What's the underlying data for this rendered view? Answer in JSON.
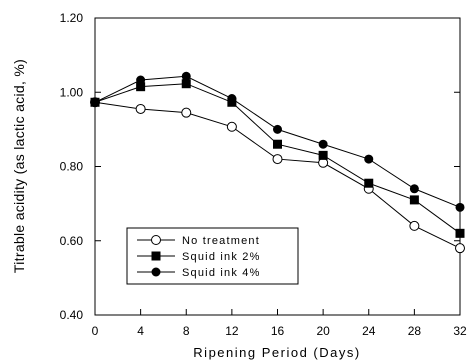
{
  "chart_data": {
    "type": "line",
    "title": "",
    "xlabel": "Ripening Period (Days)",
    "ylabel": "Titrable acidity (as lactic acid, %)",
    "x": [
      0,
      4,
      8,
      12,
      16,
      20,
      24,
      28,
      32
    ],
    "x_ticks": [
      "0",
      "4",
      "8",
      "12",
      "16",
      "20",
      "24",
      "28",
      "32"
    ],
    "y_ticks": [
      "0.40",
      "0.60",
      "0.80",
      "1.00",
      "1.20"
    ],
    "xlim": [
      0,
      32
    ],
    "ylim": [
      0.4,
      1.2
    ],
    "grid": false,
    "legend_position": "bottom-left",
    "series": [
      {
        "name": "No treatment",
        "marker": "open-circle",
        "values": [
          0.973,
          0.955,
          0.945,
          0.907,
          0.82,
          0.81,
          0.74,
          0.64,
          0.58
        ]
      },
      {
        "name": "Squid ink 2%",
        "marker": "filled-square",
        "values": [
          0.973,
          1.015,
          1.023,
          0.973,
          0.86,
          0.83,
          0.755,
          0.71,
          0.62
        ]
      },
      {
        "name": "Squid ink 4%",
        "marker": "filled-circle",
        "values": [
          0.973,
          1.033,
          1.043,
          0.983,
          0.9,
          0.86,
          0.82,
          0.74,
          0.69
        ]
      }
    ]
  }
}
